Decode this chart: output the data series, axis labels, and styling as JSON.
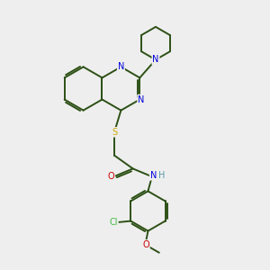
{
  "bg_color": "#eeeeee",
  "bond_color": "#2d5016",
  "bond_width": 1.4,
  "dbo": 0.07,
  "atom_colors": {
    "N": "#0000dd",
    "S": "#ccaa00",
    "O": "#cc0000",
    "Cl": "#44bb44",
    "H": "#5599aa",
    "C": "#2d5016"
  },
  "afs": 7.0
}
